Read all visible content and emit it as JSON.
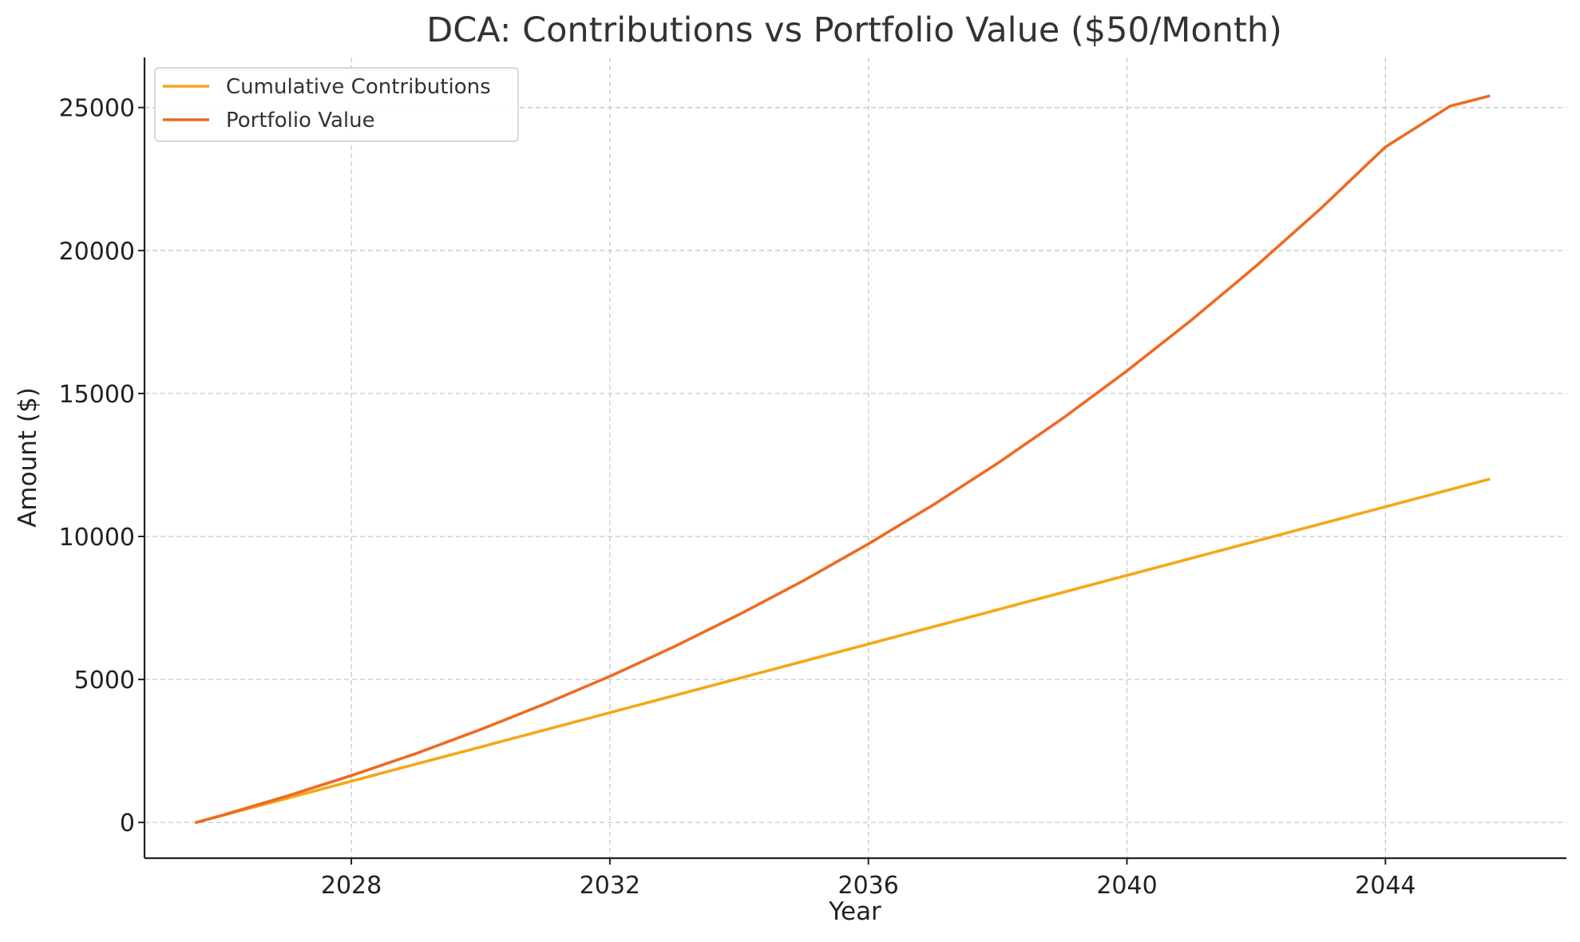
{
  "chart_data": {
    "type": "line",
    "title": "DCA: Contributions vs Portfolio Value ($50/Month)",
    "xlabel": "Year",
    "ylabel": "Amount ($)",
    "xlim": [
      2024.8,
      2046.8
    ],
    "ylim": [
      -1250,
      26750
    ],
    "xticks": [
      2028,
      2032,
      2036,
      2040,
      2044
    ],
    "yticks": [
      0,
      5000,
      10000,
      15000,
      20000,
      25000
    ],
    "grid": true,
    "legend_position": "top-left",
    "x": [
      2025.6,
      2026,
      2027,
      2028,
      2029,
      2030,
      2031,
      2032,
      2033,
      2034,
      2035,
      2036,
      2037,
      2038,
      2039,
      2040,
      2041,
      2042,
      2043,
      2044,
      2045,
      2045.6
    ],
    "series": [
      {
        "name": "Cumulative Contributions",
        "color": "#f5a716",
        "values": [
          0,
          240,
          840,
          1440,
          2040,
          2640,
          3240,
          3840,
          4440,
          5040,
          5640,
          6240,
          6840,
          7440,
          8040,
          8640,
          9240,
          9840,
          10440,
          11040,
          11640,
          12000
        ]
      },
      {
        "name": "Portfolio Value",
        "color": "#ee6a22",
        "values": [
          0,
          250,
          920,
          1640,
          2410,
          3250,
          4150,
          5110,
          6150,
          7270,
          8460,
          9740,
          11100,
          12560,
          14120,
          15790,
          17570,
          19460,
          21470,
          23620,
          25050,
          25400
        ]
      }
    ]
  }
}
